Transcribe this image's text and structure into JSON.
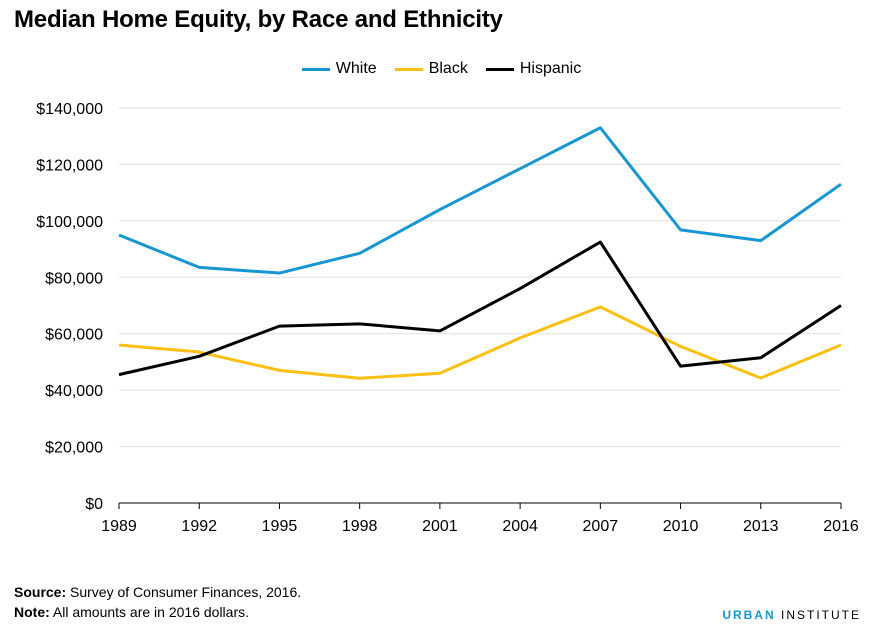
{
  "title": "Median Home Equity, by Race and Ethnicity",
  "footer": {
    "source_label": "Source:",
    "source_text": " Survey of Consumer Finances, 2016.",
    "note_label": "Note:",
    "note_text": " All amounts are in 2016 dollars."
  },
  "brand": {
    "part1": "URBAN",
    "part2": " INSTITUTE",
    "color": "#1696d2"
  },
  "chart_data": {
    "type": "line",
    "title": "Median Home Equity, by Race and Ethnicity",
    "x": [
      "1989",
      "1992",
      "1995",
      "1998",
      "2001",
      "2004",
      "2007",
      "2010",
      "2013",
      "2016"
    ],
    "ylim": [
      0,
      140000
    ],
    "yticks": [
      0,
      20000,
      40000,
      60000,
      80000,
      100000,
      120000,
      140000
    ],
    "ytick_labels": [
      "$0",
      "$20,000",
      "$40,000",
      "$60,000",
      "$80,000",
      "$100,000",
      "$120,000",
      "$140,000"
    ],
    "grid": true,
    "legend": "top-center",
    "series": [
      {
        "name": "White",
        "color": "#1696d2",
        "values": [
          95000,
          83500,
          81500,
          88500,
          104000,
          118500,
          133000,
          96800,
          93000,
          113000
        ]
      },
      {
        "name": "Black",
        "color": "#fdbf11",
        "values": [
          56000,
          53500,
          47000,
          44200,
          46000,
          58500,
          69500,
          55500,
          44300,
          56000
        ]
      },
      {
        "name": "Hispanic",
        "color": "#000000",
        "values": [
          45500,
          52000,
          62700,
          63500,
          61000,
          76000,
          92500,
          48500,
          51500,
          70000
        ]
      }
    ]
  }
}
